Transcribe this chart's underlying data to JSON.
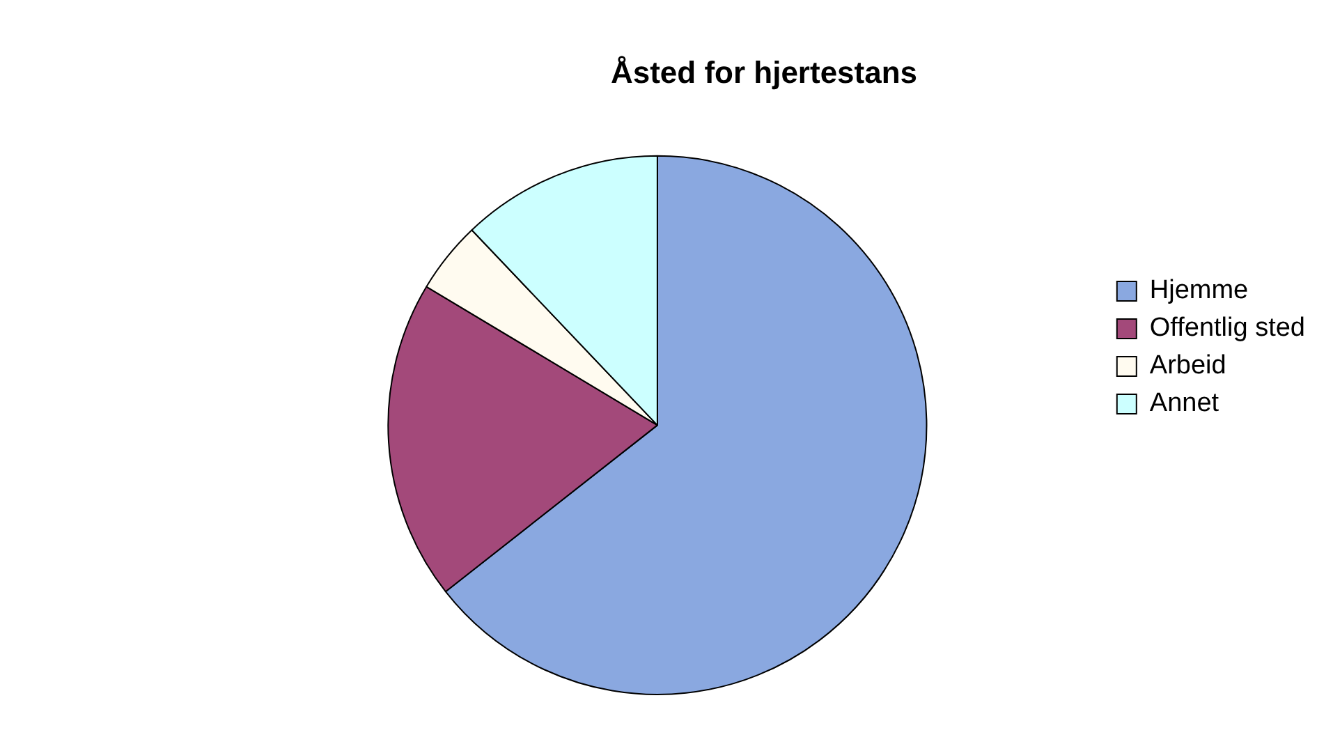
{
  "chart_data": {
    "type": "pie",
    "title": "Åsted for hjertestans",
    "categories": [
      "Hjemme",
      "Offentlig sted",
      "Arbeid",
      "Annet"
    ],
    "values": [
      64.4,
      19.2,
      4.3,
      12.1
    ],
    "colors": [
      "#8aa8e0",
      "#a3497a",
      "#fffbf0",
      "#ccffff"
    ],
    "legend": "right"
  }
}
